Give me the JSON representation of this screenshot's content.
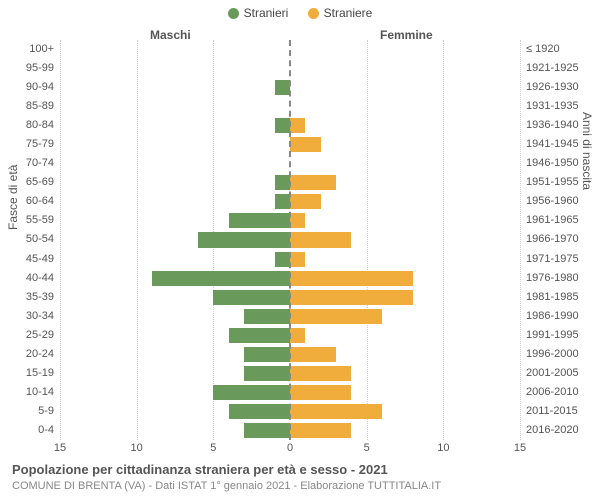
{
  "legend": {
    "male": {
      "label": "Stranieri",
      "color": "#6a9a5b"
    },
    "female": {
      "label": "Straniere",
      "color": "#f0ad3b"
    }
  },
  "headers": {
    "male": "Maschi",
    "female": "Femmine"
  },
  "axes": {
    "y_left_title": "Fasce di età",
    "y_right_title": "Anni di nascita",
    "x_max": 15,
    "x_ticks": [
      15,
      10,
      5,
      0,
      5,
      10,
      15
    ],
    "grid_color": "#cfcfcf",
    "center_color": "#888888"
  },
  "rows": [
    {
      "age": "100+",
      "birth": "≤ 1920",
      "m": 0,
      "f": 0
    },
    {
      "age": "95-99",
      "birth": "1921-1925",
      "m": 0,
      "f": 0
    },
    {
      "age": "90-94",
      "birth": "1926-1930",
      "m": 1,
      "f": 0
    },
    {
      "age": "85-89",
      "birth": "1931-1935",
      "m": 0,
      "f": 0
    },
    {
      "age": "80-84",
      "birth": "1936-1940",
      "m": 1,
      "f": 1
    },
    {
      "age": "75-79",
      "birth": "1941-1945",
      "m": 0,
      "f": 2
    },
    {
      "age": "70-74",
      "birth": "1946-1950",
      "m": 0,
      "f": 0
    },
    {
      "age": "65-69",
      "birth": "1951-1955",
      "m": 1,
      "f": 3
    },
    {
      "age": "60-64",
      "birth": "1956-1960",
      "m": 1,
      "f": 2
    },
    {
      "age": "55-59",
      "birth": "1961-1965",
      "m": 4,
      "f": 1
    },
    {
      "age": "50-54",
      "birth": "1966-1970",
      "m": 6,
      "f": 4
    },
    {
      "age": "45-49",
      "birth": "1971-1975",
      "m": 1,
      "f": 1
    },
    {
      "age": "40-44",
      "birth": "1976-1980",
      "m": 9,
      "f": 8
    },
    {
      "age": "35-39",
      "birth": "1981-1985",
      "m": 5,
      "f": 8
    },
    {
      "age": "30-34",
      "birth": "1986-1990",
      "m": 3,
      "f": 6
    },
    {
      "age": "25-29",
      "birth": "1991-1995",
      "m": 4,
      "f": 1
    },
    {
      "age": "20-24",
      "birth": "1996-2000",
      "m": 3,
      "f": 3
    },
    {
      "age": "15-19",
      "birth": "2001-2005",
      "m": 3,
      "f": 4
    },
    {
      "age": "10-14",
      "birth": "2006-2010",
      "m": 5,
      "f": 4
    },
    {
      "age": "5-9",
      "birth": "2011-2015",
      "m": 4,
      "f": 6
    },
    {
      "age": "0-4",
      "birth": "2016-2020",
      "m": 3,
      "f": 4
    }
  ],
  "title": "Popolazione per cittadinanza straniera per età e sesso - 2021",
  "subtitle": "COMUNE DI BRENTA (VA) - Dati ISTAT 1° gennaio 2021 - Elaborazione TUTTITALIA.IT",
  "colors": {
    "bg": "#ffffff",
    "text": "#555555",
    "subtext": "#888888"
  }
}
